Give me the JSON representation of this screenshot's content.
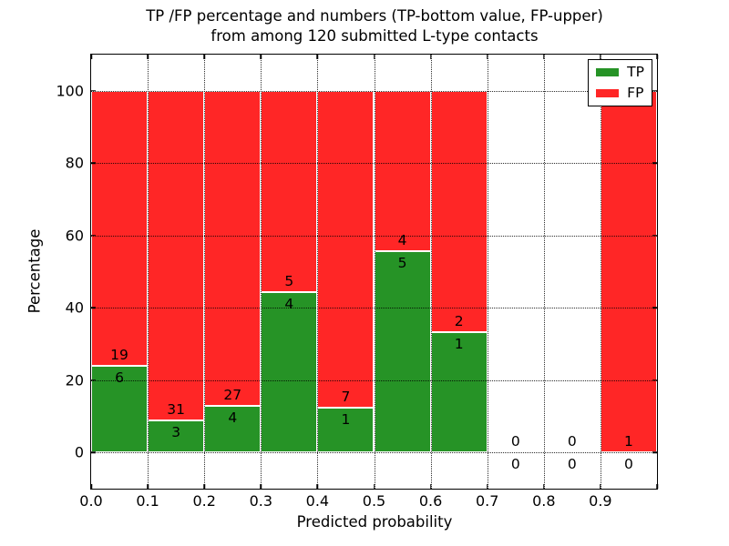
{
  "chart_data": {
    "type": "bar",
    "stacked": true,
    "title_line1": "TP /FP percentage and numbers (TP-bottom value, FP-upper)",
    "title_line2": "from among 120 submitted L-type contacts",
    "xlabel": "Predicted probability",
    "ylabel": "Percentage",
    "xlim": [
      0.0,
      1.0
    ],
    "ylim": [
      -10,
      110
    ],
    "grid": "dotted black, drawn above bars",
    "bar_edge_color": "#ffffff",
    "xticks": [
      {
        "pos": 0.0,
        "label": "0.0"
      },
      {
        "pos": 0.1,
        "label": "0.1"
      },
      {
        "pos": 0.2,
        "label": "0.2"
      },
      {
        "pos": 0.3,
        "label": "0.3"
      },
      {
        "pos": 0.4,
        "label": "0.4"
      },
      {
        "pos": 0.5,
        "label": "0.5"
      },
      {
        "pos": 0.6,
        "label": "0.6"
      },
      {
        "pos": 0.7,
        "label": "0.7"
      },
      {
        "pos": 0.8,
        "label": "0.8"
      },
      {
        "pos": 0.9,
        "label": "0.9"
      },
      {
        "pos": 1.0,
        "label": ""
      }
    ],
    "yticks": [
      {
        "pos": 0,
        "label": "0"
      },
      {
        "pos": 20,
        "label": "20"
      },
      {
        "pos": 40,
        "label": "40"
      },
      {
        "pos": 60,
        "label": "60"
      },
      {
        "pos": 80,
        "label": "80"
      },
      {
        "pos": 100,
        "label": "100"
      }
    ],
    "legend": {
      "position": "upper right",
      "items": [
        {
          "name": "TP",
          "color": "#269326"
        },
        {
          "name": "FP",
          "color": "#ff2626"
        }
      ]
    },
    "bins": [
      {
        "x0": 0.0,
        "x1": 0.1,
        "tp": 6,
        "fp": 19
      },
      {
        "x0": 0.1,
        "x1": 0.2,
        "tp": 3,
        "fp": 31
      },
      {
        "x0": 0.2,
        "x1": 0.3,
        "tp": 4,
        "fp": 27
      },
      {
        "x0": 0.3,
        "x1": 0.4,
        "tp": 4,
        "fp": 5
      },
      {
        "x0": 0.4,
        "x1": 0.5,
        "tp": 1,
        "fp": 7
      },
      {
        "x0": 0.5,
        "x1": 0.6,
        "tp": 5,
        "fp": 4
      },
      {
        "x0": 0.6,
        "x1": 0.7,
        "tp": 1,
        "fp": 2
      },
      {
        "x0": 0.7,
        "x1": 0.8,
        "tp": 0,
        "fp": 0
      },
      {
        "x0": 0.8,
        "x1": 0.9,
        "tp": 0,
        "fp": 0
      },
      {
        "x0": 0.9,
        "x1": 1.0,
        "tp": 0,
        "fp": 1
      }
    ]
  }
}
